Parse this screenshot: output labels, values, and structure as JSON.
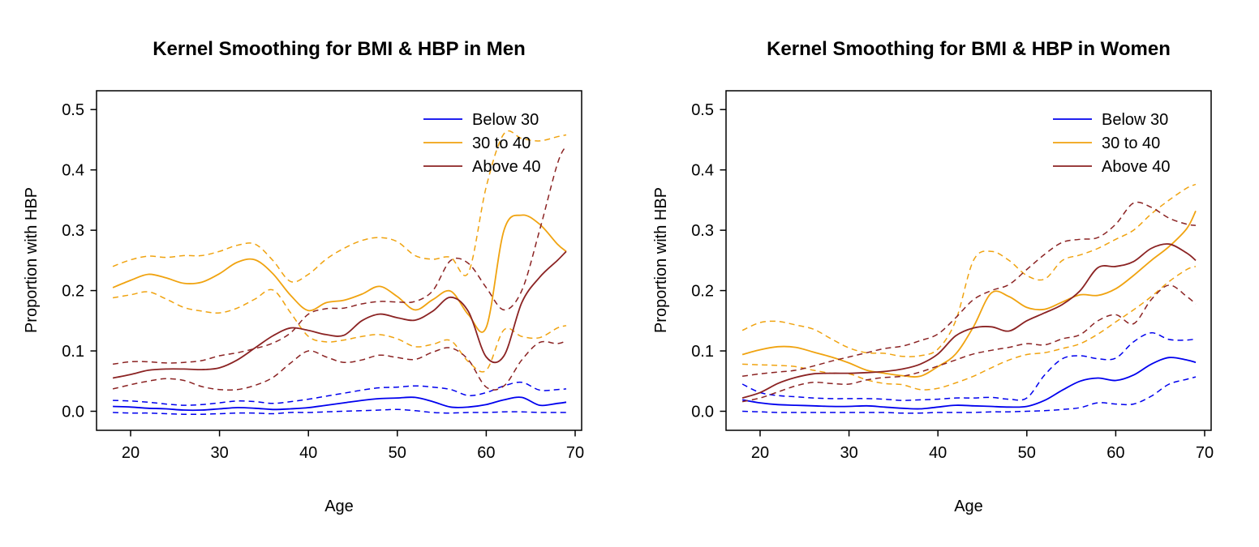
{
  "page": {
    "background": "#ffffff",
    "description": "Two R-style kernel smoothing line charts side by side"
  },
  "colors": {
    "blue": "#0000EE",
    "orange": "#F0A310",
    "darkred": "#8B2323",
    "axis": "#000000",
    "text": "#000000"
  },
  "chart_data": [
    {
      "type": "line",
      "title": "Kernel Smoothing for BMI & HBP in Men",
      "xlabel": "Age",
      "ylabel": "Proportion with HBP",
      "xlim": [
        16.2,
        70.8
      ],
      "ylim": [
        -0.032,
        0.531
      ],
      "x_ticks": [
        20,
        30,
        40,
        50,
        60,
        70
      ],
      "y_ticks": [
        "0.0",
        "0.1",
        "0.2",
        "0.3",
        "0.4",
        "0.5"
      ],
      "grid": false,
      "legend_position": "top-right",
      "legend": [
        {
          "label": "Below 30",
          "color": "blue"
        },
        {
          "label": "30 to 40",
          "color": "orange"
        },
        {
          "label": "Above 40",
          "color": "darkred"
        }
      ],
      "x": [
        18,
        20,
        22,
        24,
        26,
        28,
        30,
        32,
        34,
        36,
        38,
        40,
        42,
        44,
        46,
        48,
        50,
        52,
        54,
        56,
        58,
        60,
        62,
        64,
        66,
        68,
        69
      ],
      "series": [
        {
          "name": "Below 30",
          "role": "estimate",
          "color": "blue",
          "style": "solid",
          "values": [
            0.008,
            0.007,
            0.005,
            0.004,
            0.002,
            0.002,
            0.004,
            0.006,
            0.005,
            0.003,
            0.004,
            0.006,
            0.01,
            0.014,
            0.018,
            0.021,
            0.022,
            0.023,
            0.016,
            0.007,
            0.007,
            0.011,
            0.019,
            0.023,
            0.01,
            0.013,
            0.015
          ]
        },
        {
          "name": "Below 30 lower CI",
          "role": "lower",
          "color": "blue",
          "style": "dashed",
          "values": [
            -0.002,
            -0.003,
            -0.003,
            -0.004,
            -0.005,
            -0.005,
            -0.004,
            -0.003,
            -0.003,
            -0.004,
            -0.002,
            -0.002,
            -0.001,
            0.0,
            0.001,
            0.002,
            0.003,
            0.001,
            -0.002,
            -0.003,
            -0.002,
            -0.002,
            -0.001,
            -0.001,
            -0.002,
            -0.002,
            -0.002
          ]
        },
        {
          "name": "Below 30 upper CI",
          "role": "upper",
          "color": "blue",
          "style": "dashed",
          "values": [
            0.018,
            0.017,
            0.015,
            0.012,
            0.01,
            0.011,
            0.014,
            0.017,
            0.016,
            0.013,
            0.016,
            0.02,
            0.025,
            0.03,
            0.035,
            0.039,
            0.04,
            0.042,
            0.04,
            0.036,
            0.026,
            0.031,
            0.042,
            0.048,
            0.035,
            0.036,
            0.037
          ]
        },
        {
          "name": "30 to 40",
          "role": "estimate",
          "color": "orange",
          "style": "solid",
          "values": [
            0.205,
            0.217,
            0.227,
            0.221,
            0.212,
            0.214,
            0.228,
            0.247,
            0.251,
            0.228,
            0.192,
            0.167,
            0.18,
            0.184,
            0.194,
            0.207,
            0.19,
            0.168,
            0.185,
            0.199,
            0.16,
            0.139,
            0.3,
            0.325,
            0.31,
            0.277,
            0.265
          ]
        },
        {
          "name": "30 to 40 lower CI",
          "role": "lower",
          "color": "orange",
          "style": "dashed",
          "values": [
            0.188,
            0.193,
            0.198,
            0.186,
            0.172,
            0.166,
            0.163,
            0.171,
            0.186,
            0.201,
            0.163,
            0.124,
            0.115,
            0.118,
            0.124,
            0.127,
            0.12,
            0.107,
            0.111,
            0.117,
            0.082,
            0.068,
            0.135,
            0.124,
            0.122,
            0.138,
            0.142
          ]
        },
        {
          "name": "30 to 40 upper CI",
          "role": "upper",
          "color": "orange",
          "style": "dashed",
          "values": [
            0.24,
            0.251,
            0.257,
            0.255,
            0.258,
            0.258,
            0.265,
            0.275,
            0.277,
            0.25,
            0.215,
            0.227,
            0.252,
            0.27,
            0.283,
            0.288,
            0.281,
            0.258,
            0.252,
            0.255,
            0.23,
            0.372,
            0.46,
            0.452,
            0.448,
            0.455,
            0.458
          ]
        },
        {
          "name": "Above 40",
          "role": "estimate",
          "color": "darkred",
          "style": "solid",
          "values": [
            0.055,
            0.061,
            0.068,
            0.07,
            0.07,
            0.069,
            0.072,
            0.085,
            0.105,
            0.125,
            0.138,
            0.134,
            0.127,
            0.126,
            0.15,
            0.161,
            0.155,
            0.151,
            0.166,
            0.189,
            0.165,
            0.09,
            0.092,
            0.18,
            0.222,
            0.25,
            0.265
          ]
        },
        {
          "name": "Above 40 lower CI",
          "role": "lower",
          "color": "darkred",
          "style": "dashed",
          "values": [
            0.037,
            0.044,
            0.05,
            0.054,
            0.051,
            0.041,
            0.036,
            0.036,
            0.043,
            0.056,
            0.08,
            0.1,
            0.09,
            0.081,
            0.085,
            0.093,
            0.089,
            0.086,
            0.098,
            0.105,
            0.085,
            0.04,
            0.042,
            0.085,
            0.114,
            0.112,
            0.117
          ]
        },
        {
          "name": "Above 40 upper CI",
          "role": "upper",
          "color": "darkred",
          "style": "dashed",
          "values": [
            0.078,
            0.082,
            0.082,
            0.08,
            0.081,
            0.084,
            0.092,
            0.097,
            0.104,
            0.113,
            0.13,
            0.161,
            0.17,
            0.171,
            0.178,
            0.182,
            0.181,
            0.182,
            0.2,
            0.25,
            0.245,
            0.205,
            0.168,
            0.2,
            0.3,
            0.41,
            0.44
          ]
        }
      ]
    },
    {
      "type": "line",
      "title": "Kernel Smoothing for BMI & HBP in Women",
      "xlabel": "Age",
      "ylabel": "Proportion with HBP",
      "xlim": [
        16.2,
        70.8
      ],
      "ylim": [
        -0.032,
        0.531
      ],
      "x_ticks": [
        20,
        30,
        40,
        50,
        60,
        70
      ],
      "y_ticks": [
        "0.0",
        "0.1",
        "0.2",
        "0.3",
        "0.4",
        "0.5"
      ],
      "grid": false,
      "legend_position": "top-right",
      "legend": [
        {
          "label": "Below 30",
          "color": "blue"
        },
        {
          "label": "30 to 40",
          "color": "orange"
        },
        {
          "label": "Above 40",
          "color": "darkred"
        }
      ],
      "x": [
        18,
        20,
        22,
        24,
        26,
        28,
        30,
        32,
        34,
        36,
        38,
        40,
        42,
        44,
        46,
        48,
        50,
        52,
        54,
        56,
        58,
        60,
        62,
        64,
        66,
        68,
        69
      ],
      "series": [
        {
          "name": "Below 30",
          "role": "estimate",
          "color": "blue",
          "style": "solid",
          "values": [
            0.019,
            0.014,
            0.011,
            0.01,
            0.009,
            0.008,
            0.008,
            0.009,
            0.007,
            0.005,
            0.004,
            0.007,
            0.01,
            0.009,
            0.008,
            0.007,
            0.008,
            0.018,
            0.035,
            0.05,
            0.055,
            0.051,
            0.06,
            0.078,
            0.089,
            0.085,
            0.081
          ]
        },
        {
          "name": "Below 30 lower CI",
          "role": "lower",
          "color": "blue",
          "style": "dashed",
          "values": [
            0.0,
            -0.001,
            -0.002,
            -0.002,
            -0.002,
            -0.002,
            -0.002,
            -0.002,
            -0.002,
            -0.003,
            -0.003,
            -0.002,
            -0.002,
            -0.002,
            -0.001,
            -0.001,
            0.0,
            0.001,
            0.003,
            0.006,
            0.014,
            0.012,
            0.012,
            0.025,
            0.045,
            0.053,
            0.057
          ]
        },
        {
          "name": "Below 30 upper CI",
          "role": "upper",
          "color": "blue",
          "style": "dashed",
          "values": [
            0.045,
            0.031,
            0.026,
            0.024,
            0.022,
            0.021,
            0.021,
            0.021,
            0.02,
            0.018,
            0.019,
            0.02,
            0.022,
            0.022,
            0.023,
            0.02,
            0.022,
            0.06,
            0.087,
            0.092,
            0.087,
            0.088,
            0.115,
            0.13,
            0.119,
            0.118,
            0.12
          ]
        },
        {
          "name": "30 to 40",
          "role": "estimate",
          "color": "orange",
          "style": "solid",
          "values": [
            0.094,
            0.102,
            0.107,
            0.106,
            0.098,
            0.09,
            0.08,
            0.068,
            0.063,
            0.059,
            0.058,
            0.074,
            0.095,
            0.14,
            0.196,
            0.19,
            0.172,
            0.169,
            0.181,
            0.193,
            0.192,
            0.203,
            0.225,
            0.25,
            0.273,
            0.303,
            0.332
          ]
        },
        {
          "name": "30 to 40 lower CI",
          "role": "lower",
          "color": "orange",
          "style": "dashed",
          "values": [
            0.078,
            0.077,
            0.076,
            0.074,
            0.068,
            0.063,
            0.062,
            0.052,
            0.046,
            0.044,
            0.036,
            0.038,
            0.047,
            0.058,
            0.072,
            0.085,
            0.094,
            0.097,
            0.104,
            0.112,
            0.128,
            0.148,
            0.168,
            0.19,
            0.215,
            0.235,
            0.24
          ]
        },
        {
          "name": "30 to 40 upper CI",
          "role": "upper",
          "color": "orange",
          "style": "dashed",
          "values": [
            0.134,
            0.147,
            0.149,
            0.143,
            0.136,
            0.12,
            0.105,
            0.097,
            0.096,
            0.091,
            0.092,
            0.103,
            0.15,
            0.25,
            0.265,
            0.25,
            0.225,
            0.219,
            0.25,
            0.259,
            0.27,
            0.285,
            0.3,
            0.327,
            0.35,
            0.37,
            0.376
          ]
        },
        {
          "name": "Above 40",
          "role": "estimate",
          "color": "darkred",
          "style": "solid",
          "values": [
            0.022,
            0.031,
            0.046,
            0.056,
            0.062,
            0.063,
            0.063,
            0.064,
            0.066,
            0.07,
            0.078,
            0.095,
            0.125,
            0.138,
            0.14,
            0.133,
            0.15,
            0.163,
            0.177,
            0.2,
            0.238,
            0.24,
            0.248,
            0.27,
            0.277,
            0.262,
            0.25
          ]
        },
        {
          "name": "Above 40 lower CI",
          "role": "lower",
          "color": "darkred",
          "style": "dashed",
          "values": [
            0.016,
            0.022,
            0.032,
            0.042,
            0.048,
            0.046,
            0.045,
            0.052,
            0.056,
            0.058,
            0.065,
            0.075,
            0.085,
            0.095,
            0.101,
            0.106,
            0.112,
            0.11,
            0.12,
            0.127,
            0.15,
            0.16,
            0.145,
            0.185,
            0.209,
            0.19,
            0.178
          ]
        },
        {
          "name": "Above 40 upper CI",
          "role": "upper",
          "color": "darkred",
          "style": "dashed",
          "values": [
            0.058,
            0.062,
            0.065,
            0.068,
            0.075,
            0.083,
            0.09,
            0.097,
            0.104,
            0.108,
            0.117,
            0.128,
            0.155,
            0.185,
            0.2,
            0.21,
            0.235,
            0.26,
            0.28,
            0.285,
            0.288,
            0.31,
            0.345,
            0.338,
            0.32,
            0.31,
            0.308
          ]
        }
      ]
    }
  ]
}
